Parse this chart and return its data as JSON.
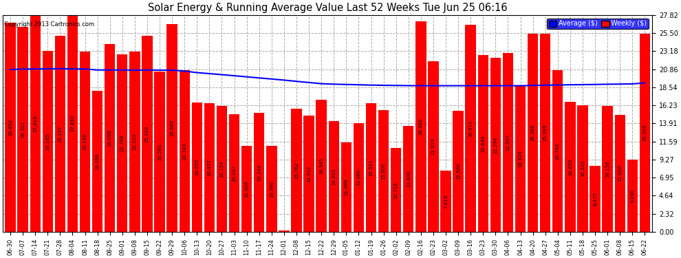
{
  "title": "Solar Energy & Running Average Value Last 52 Weeks Tue Jun 25 06:16",
  "copyright": "Copyright 2013 Cartronics.com",
  "bar_color": "#FF0000",
  "avg_line_color": "#0000FF",
  "background_color": "#FFFFFF",
  "plot_bg_color": "#FFFFFF",
  "grid_color": "#AAAAAA",
  "yticks": [
    0.0,
    2.32,
    4.64,
    6.95,
    9.27,
    11.59,
    13.91,
    16.23,
    18.54,
    20.86,
    23.18,
    25.5,
    27.82
  ],
  "categories": [
    "06-30",
    "07-07",
    "07-14",
    "07-21",
    "07-28",
    "08-04",
    "08-11",
    "08-18",
    "08-25",
    "09-01",
    "09-08",
    "09-15",
    "09-22",
    "09-29",
    "10-06",
    "10-13",
    "10-20",
    "10-27",
    "11-03",
    "11-10",
    "11-17",
    "11-24",
    "12-01",
    "12-08",
    "12-15",
    "12-22",
    "12-29",
    "01-05",
    "01-12",
    "01-19",
    "01-26",
    "02-02",
    "02-09",
    "02-16",
    "02-23",
    "03-02",
    "03-09",
    "03-16",
    "03-23",
    "03-30",
    "04-06",
    "04-13",
    "04-20",
    "04-27",
    "05-04",
    "05-11",
    "05-18",
    "05-25",
    "06-01",
    "06-08",
    "06-15",
    "06-22"
  ],
  "weekly_values": [
    26.852,
    26.322,
    27.818,
    23.185,
    25.157,
    27.853,
    23.149,
    18.098,
    24.098,
    22.768,
    23.103,
    25.103,
    20.581,
    26.665,
    20.743,
    16.555,
    16.477,
    16.154,
    15.047,
    11.006,
    15.244,
    10.98,
    0.15,
    15.762,
    14.912,
    16.945,
    14.203,
    11.499,
    13.96,
    16.521,
    15.6,
    10.718,
    13.6,
    26.98,
    21.919,
    7.819,
    15.56,
    26.516,
    22.649,
    22.296,
    22.907,
    18.82,
    25.388,
    25.399,
    20.74,
    16.65,
    16.203,
    8.477,
    16.15,
    15.0,
    9.24,
    25.399
  ],
  "avg_values": [
    20.82,
    20.87,
    20.89,
    20.91,
    20.93,
    20.89,
    20.88,
    20.76,
    20.76,
    20.76,
    20.74,
    20.75,
    20.74,
    20.73,
    20.61,
    20.42,
    20.29,
    20.16,
    20.02,
    19.88,
    19.74,
    19.6,
    19.46,
    19.3,
    19.15,
    19.0,
    18.94,
    18.9,
    18.86,
    18.82,
    18.79,
    18.77,
    18.75,
    18.74,
    18.74,
    18.74,
    18.74,
    18.74,
    18.74,
    18.74,
    18.74,
    18.74,
    18.77,
    18.8,
    18.83,
    18.86,
    18.88,
    18.9,
    18.93,
    18.95,
    18.97,
    19.1
  ],
  "ylim": [
    0,
    27.82
  ],
  "bar_values_fontsize": 5.0,
  "xlabel_fontsize": 6,
  "title_fontsize": 10.5
}
